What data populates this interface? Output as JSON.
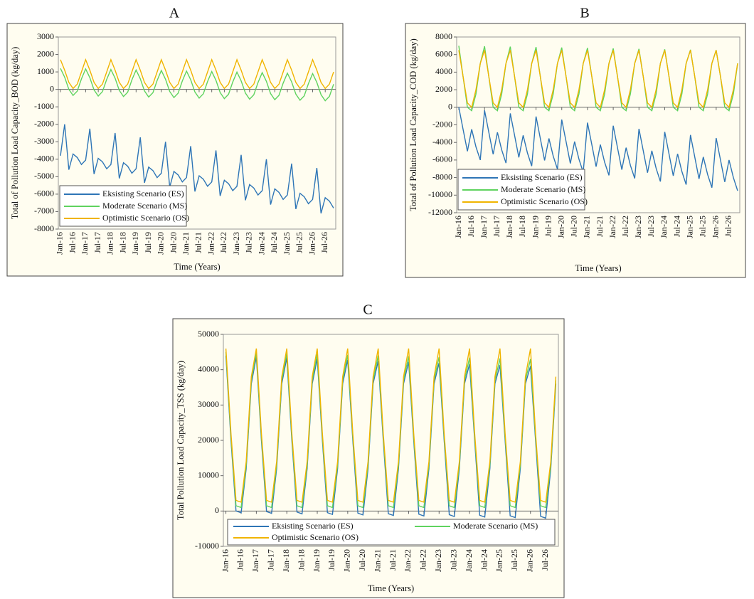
{
  "chart_data": [
    {
      "type": "line",
      "title": "A",
      "y_label": "Total of Pollution Load Capacity_BOD (kg/day)",
      "x_label": "Time (Years)",
      "legend": "lower left",
      "categories": [
        "Jan-16",
        null,
        null,
        "Jul-16",
        null,
        null,
        "Jan-17",
        null,
        null,
        "Jul-17",
        null,
        null,
        "Jan-18",
        null,
        null,
        "Jul-18",
        null,
        null,
        "Jan-19",
        null,
        null,
        "Jul-19",
        null,
        null,
        "Jan-20",
        null,
        null,
        "Jul-20",
        null,
        null,
        "Jan-21",
        null,
        null,
        "Jul-21",
        null,
        null,
        "Jan-22",
        null,
        null,
        "Jul-22",
        null,
        null,
        "Jan-23",
        null,
        null,
        "Jul-23",
        null,
        null,
        "Jan-24",
        null,
        null,
        "Jul-24",
        null,
        null,
        "Jan-25",
        null,
        null,
        "Jul-25",
        null,
        null,
        "Jan-26",
        null,
        null,
        "Jul-26",
        null,
        null
      ],
      "ylim": [
        -8000,
        3000
      ],
      "yticks": [
        -8000,
        -7000,
        -6000,
        -5000,
        -4000,
        -3000,
        -2000,
        -1000,
        0,
        1000,
        2000,
        3000
      ],
      "series": [
        {
          "name": "Eksisting Scenario (ES)",
          "color": "#2e75b6",
          "values": [
            -3800,
            -2000,
            -4600,
            -3700,
            -3900,
            -4300,
            -4050,
            -2250,
            -4850,
            -3950,
            -4150,
            -4550,
            -4300,
            -2500,
            -5100,
            -4200,
            -4400,
            -4800,
            -4550,
            -2750,
            -5350,
            -4450,
            -4650,
            -5050,
            -4800,
            -3000,
            -5600,
            -4700,
            -4900,
            -5300,
            -5050,
            -3250,
            -5850,
            -4950,
            -5150,
            -5550,
            -5300,
            -3500,
            -6100,
            -5200,
            -5400,
            -5800,
            -5550,
            -3750,
            -6350,
            -5450,
            -5650,
            -6050,
            -5800,
            -4000,
            -6600,
            -5700,
            -5900,
            -6300,
            -6050,
            -4250,
            -6850,
            -5950,
            -6150,
            -6550,
            -6300,
            -4500,
            -7100,
            -6200,
            -6400,
            -6800
          ]
        },
        {
          "name": "Moderate Scenario (MS)",
          "color": "#5fd35f",
          "values": [
            1200,
            700,
            0,
            -350,
            -100,
            600,
            1170,
            670,
            -30,
            -380,
            -130,
            570,
            1140,
            640,
            -60,
            -410,
            -160,
            540,
            1110,
            610,
            -90,
            -440,
            -190,
            510,
            1080,
            580,
            -120,
            -470,
            -220,
            480,
            1050,
            550,
            -150,
            -500,
            -250,
            450,
            1020,
            520,
            -180,
            -530,
            -280,
            420,
            990,
            490,
            -210,
            -560,
            -310,
            390,
            960,
            460,
            -240,
            -590,
            -340,
            360,
            930,
            430,
            -270,
            -620,
            -370,
            330,
            900,
            400,
            -300,
            -650,
            -400,
            300
          ]
        },
        {
          "name": "Optimistic Scenario (OS)",
          "color": "#f0b400",
          "values": [
            1700,
            1100,
            400,
            50,
            300,
            1000,
            1700,
            1100,
            400,
            50,
            300,
            1000,
            1700,
            1100,
            400,
            50,
            300,
            1000,
            1700,
            1100,
            400,
            50,
            300,
            1000,
            1700,
            1100,
            400,
            50,
            300,
            1000,
            1700,
            1100,
            400,
            50,
            300,
            1000,
            1700,
            1100,
            400,
            50,
            300,
            1000,
            1700,
            1100,
            400,
            50,
            300,
            1000,
            1700,
            1100,
            400,
            50,
            300,
            1000,
            1700,
            1100,
            400,
            50,
            300,
            1000,
            1700,
            1100,
            400,
            50,
            300,
            1000
          ]
        }
      ]
    },
    {
      "type": "line",
      "title": "B",
      "y_label": "Total of Pollution Load Capacity_COD (kg/day)",
      "x_label": "Time (Years)",
      "legend": "lower left",
      "categories": [
        "Jan-16",
        null,
        null,
        "Jul-16",
        null,
        null,
        "Jan-17",
        null,
        null,
        "Jul-17",
        null,
        null,
        "Jan-18",
        null,
        null,
        "Jul-18",
        null,
        null,
        "Jan-19",
        null,
        null,
        "Jul-19",
        null,
        null,
        "Jan-20",
        null,
        null,
        "Jul-20",
        null,
        null,
        "Jan-21",
        null,
        null,
        "Jul-21",
        null,
        null,
        "Jan-22",
        null,
        null,
        "Jul-22",
        null,
        null,
        "Jan-23",
        null,
        null,
        "Jul-23",
        null,
        null,
        "Jan-24",
        null,
        null,
        "Jul-24",
        null,
        null,
        "Jan-25",
        null,
        null,
        "Jul-25",
        null,
        null,
        "Jan-26",
        null,
        null,
        "Jul-26",
        null,
        null
      ],
      "ylim": [
        -12000,
        8000
      ],
      "yticks": [
        -12000,
        -10000,
        -8000,
        -6000,
        -4000,
        -2000,
        0,
        2000,
        4000,
        6000,
        8000
      ],
      "series": [
        {
          "name": "Eksisting Scenario (ES)",
          "color": "#2e75b6",
          "values": [
            0,
            -2500,
            -5000,
            -2500,
            -4500,
            -6000,
            -350,
            -2850,
            -5350,
            -2850,
            -4850,
            -6350,
            -700,
            -3200,
            -5700,
            -3200,
            -5200,
            -6700,
            -1050,
            -3550,
            -6050,
            -3550,
            -5550,
            -7050,
            -1400,
            -3900,
            -6400,
            -3900,
            -5900,
            -7400,
            -1750,
            -4250,
            -6750,
            -4250,
            -6250,
            -7750,
            -2100,
            -4600,
            -7100,
            -4600,
            -6600,
            -8100,
            -2450,
            -4950,
            -7450,
            -4950,
            -6950,
            -8450,
            -2800,
            -5300,
            -7800,
            -5300,
            -7300,
            -8800,
            -3150,
            -5650,
            -8150,
            -5650,
            -7650,
            -9150,
            -3500,
            -6000,
            -8500,
            -6000,
            -8000,
            -9500
          ]
        },
        {
          "name": "Moderate Scenario (MS)",
          "color": "#5fd35f",
          "values": [
            7000,
            3500,
            0,
            -400,
            1500,
            5000,
            6950,
            3500,
            0,
            -400,
            1500,
            5000,
            6900,
            3500,
            0,
            -400,
            1500,
            5000,
            6850,
            3500,
            0,
            -400,
            1500,
            5000,
            6800,
            3500,
            0,
            -400,
            1500,
            5000,
            6750,
            3500,
            0,
            -400,
            1500,
            5000,
            6700,
            3500,
            0,
            -400,
            1500,
            5000,
            6650,
            3500,
            0,
            -400,
            1500,
            5000,
            6600,
            3500,
            0,
            -400,
            1500,
            5000,
            6550,
            3500,
            0,
            -400,
            1500,
            5000,
            6500,
            3500,
            0,
            -400,
            1500,
            5000
          ]
        },
        {
          "name": "Optimistic Scenario (OS)",
          "color": "#f0b400",
          "values": [
            6500,
            3500,
            500,
            0,
            2000,
            5000,
            6500,
            3500,
            500,
            0,
            2000,
            5000,
            6500,
            3500,
            500,
            0,
            2000,
            5000,
            6500,
            3500,
            500,
            0,
            2000,
            5000,
            6500,
            3500,
            500,
            0,
            2000,
            5000,
            6500,
            3500,
            500,
            0,
            2000,
            5000,
            6500,
            3500,
            500,
            0,
            2000,
            5000,
            6500,
            3500,
            500,
            0,
            2000,
            5000,
            6500,
            3500,
            500,
            0,
            2000,
            5000,
            6500,
            3500,
            500,
            0,
            2000,
            5000,
            6500,
            3500,
            500,
            0,
            2000,
            5000
          ]
        }
      ]
    },
    {
      "type": "line",
      "title": "C",
      "y_label": "Total Pollution Load Capacity_TSS (kg/day)",
      "x_label": "Time (Years)",
      "legend": "bottom",
      "categories": [
        "Jan-16",
        null,
        null,
        "Jul-16",
        null,
        null,
        "Jan-17",
        null,
        null,
        "Jul-17",
        null,
        null,
        "Jan-18",
        null,
        null,
        "Jul-18",
        null,
        null,
        "Jan-19",
        null,
        null,
        "Jul-19",
        null,
        null,
        "Jan-20",
        null,
        null,
        "Jul-20",
        null,
        null,
        "Jan-21",
        null,
        null,
        "Jul-21",
        null,
        null,
        "Jan-22",
        null,
        null,
        "Jul-22",
        null,
        null,
        "Jan-23",
        null,
        null,
        "Jul-23",
        null,
        null,
        "Jan-24",
        null,
        null,
        "Jul-24",
        null,
        null,
        "Jan-25",
        null,
        null,
        "Jul-25",
        null,
        null,
        "Jan-26",
        null,
        null,
        "Jul-26",
        null,
        null
      ],
      "ylim": [
        -10000,
        50000
      ],
      "yticks": [
        -10000,
        0,
        10000,
        20000,
        30000,
        40000,
        50000
      ],
      "series": [
        {
          "name": "Eksisting Scenario (ES)",
          "color": "#2e75b6",
          "values": [
            44000,
            20000,
            0,
            -500,
            12000,
            36000,
            43700,
            20000,
            -150,
            -650,
            12000,
            36000,
            43400,
            20000,
            -300,
            -800,
            12000,
            36000,
            43100,
            20000,
            -450,
            -950,
            12000,
            36000,
            42800,
            20000,
            -600,
            -1100,
            12000,
            36000,
            42500,
            20000,
            -750,
            -1250,
            12000,
            36000,
            42200,
            20000,
            -900,
            -1400,
            12000,
            36000,
            41900,
            20000,
            -1050,
            -1550,
            12000,
            36000,
            41600,
            20000,
            -1200,
            -1700,
            12000,
            36000,
            41300,
            20000,
            -1350,
            -1850,
            12000,
            36000,
            41000,
            20000,
            -1500,
            -2000,
            12000,
            36000
          ]
        },
        {
          "name": "Moderate Scenario (MS)",
          "color": "#5fd35f",
          "values": [
            45000,
            21000,
            1500,
            1000,
            13000,
            37000,
            44800,
            21000,
            1500,
            1000,
            13000,
            37000,
            44600,
            21000,
            1500,
            1000,
            13000,
            37000,
            44400,
            21000,
            1500,
            1000,
            13000,
            37000,
            44200,
            21000,
            1500,
            1000,
            13000,
            37000,
            44000,
            21000,
            1500,
            1000,
            13000,
            37000,
            43800,
            21000,
            1500,
            1000,
            13000,
            37000,
            43600,
            21000,
            1500,
            1000,
            13000,
            37000,
            43400,
            21000,
            1500,
            1000,
            13000,
            37000,
            43200,
            21000,
            1500,
            1000,
            13000,
            37000,
            43000,
            21000,
            1500,
            1000,
            13000,
            37000
          ]
        },
        {
          "name": "Optimistic Scenario (OS)",
          "color": "#f0b400",
          "values": [
            46000,
            22000,
            3000,
            2500,
            14000,
            38000,
            46000,
            22000,
            3000,
            2500,
            14000,
            38000,
            46000,
            22000,
            3000,
            2500,
            14000,
            38000,
            46000,
            22000,
            3000,
            2500,
            14000,
            38000,
            46000,
            22000,
            3000,
            2500,
            14000,
            38000,
            46000,
            22000,
            3000,
            2500,
            14000,
            38000,
            46000,
            22000,
            3000,
            2500,
            14000,
            38000,
            46000,
            22000,
            3000,
            2500,
            14000,
            38000,
            46000,
            22000,
            3000,
            2500,
            14000,
            38000,
            46000,
            22000,
            3000,
            2500,
            14000,
            38000,
            46000,
            22000,
            3000,
            2500,
            14000,
            38000
          ]
        }
      ]
    }
  ]
}
